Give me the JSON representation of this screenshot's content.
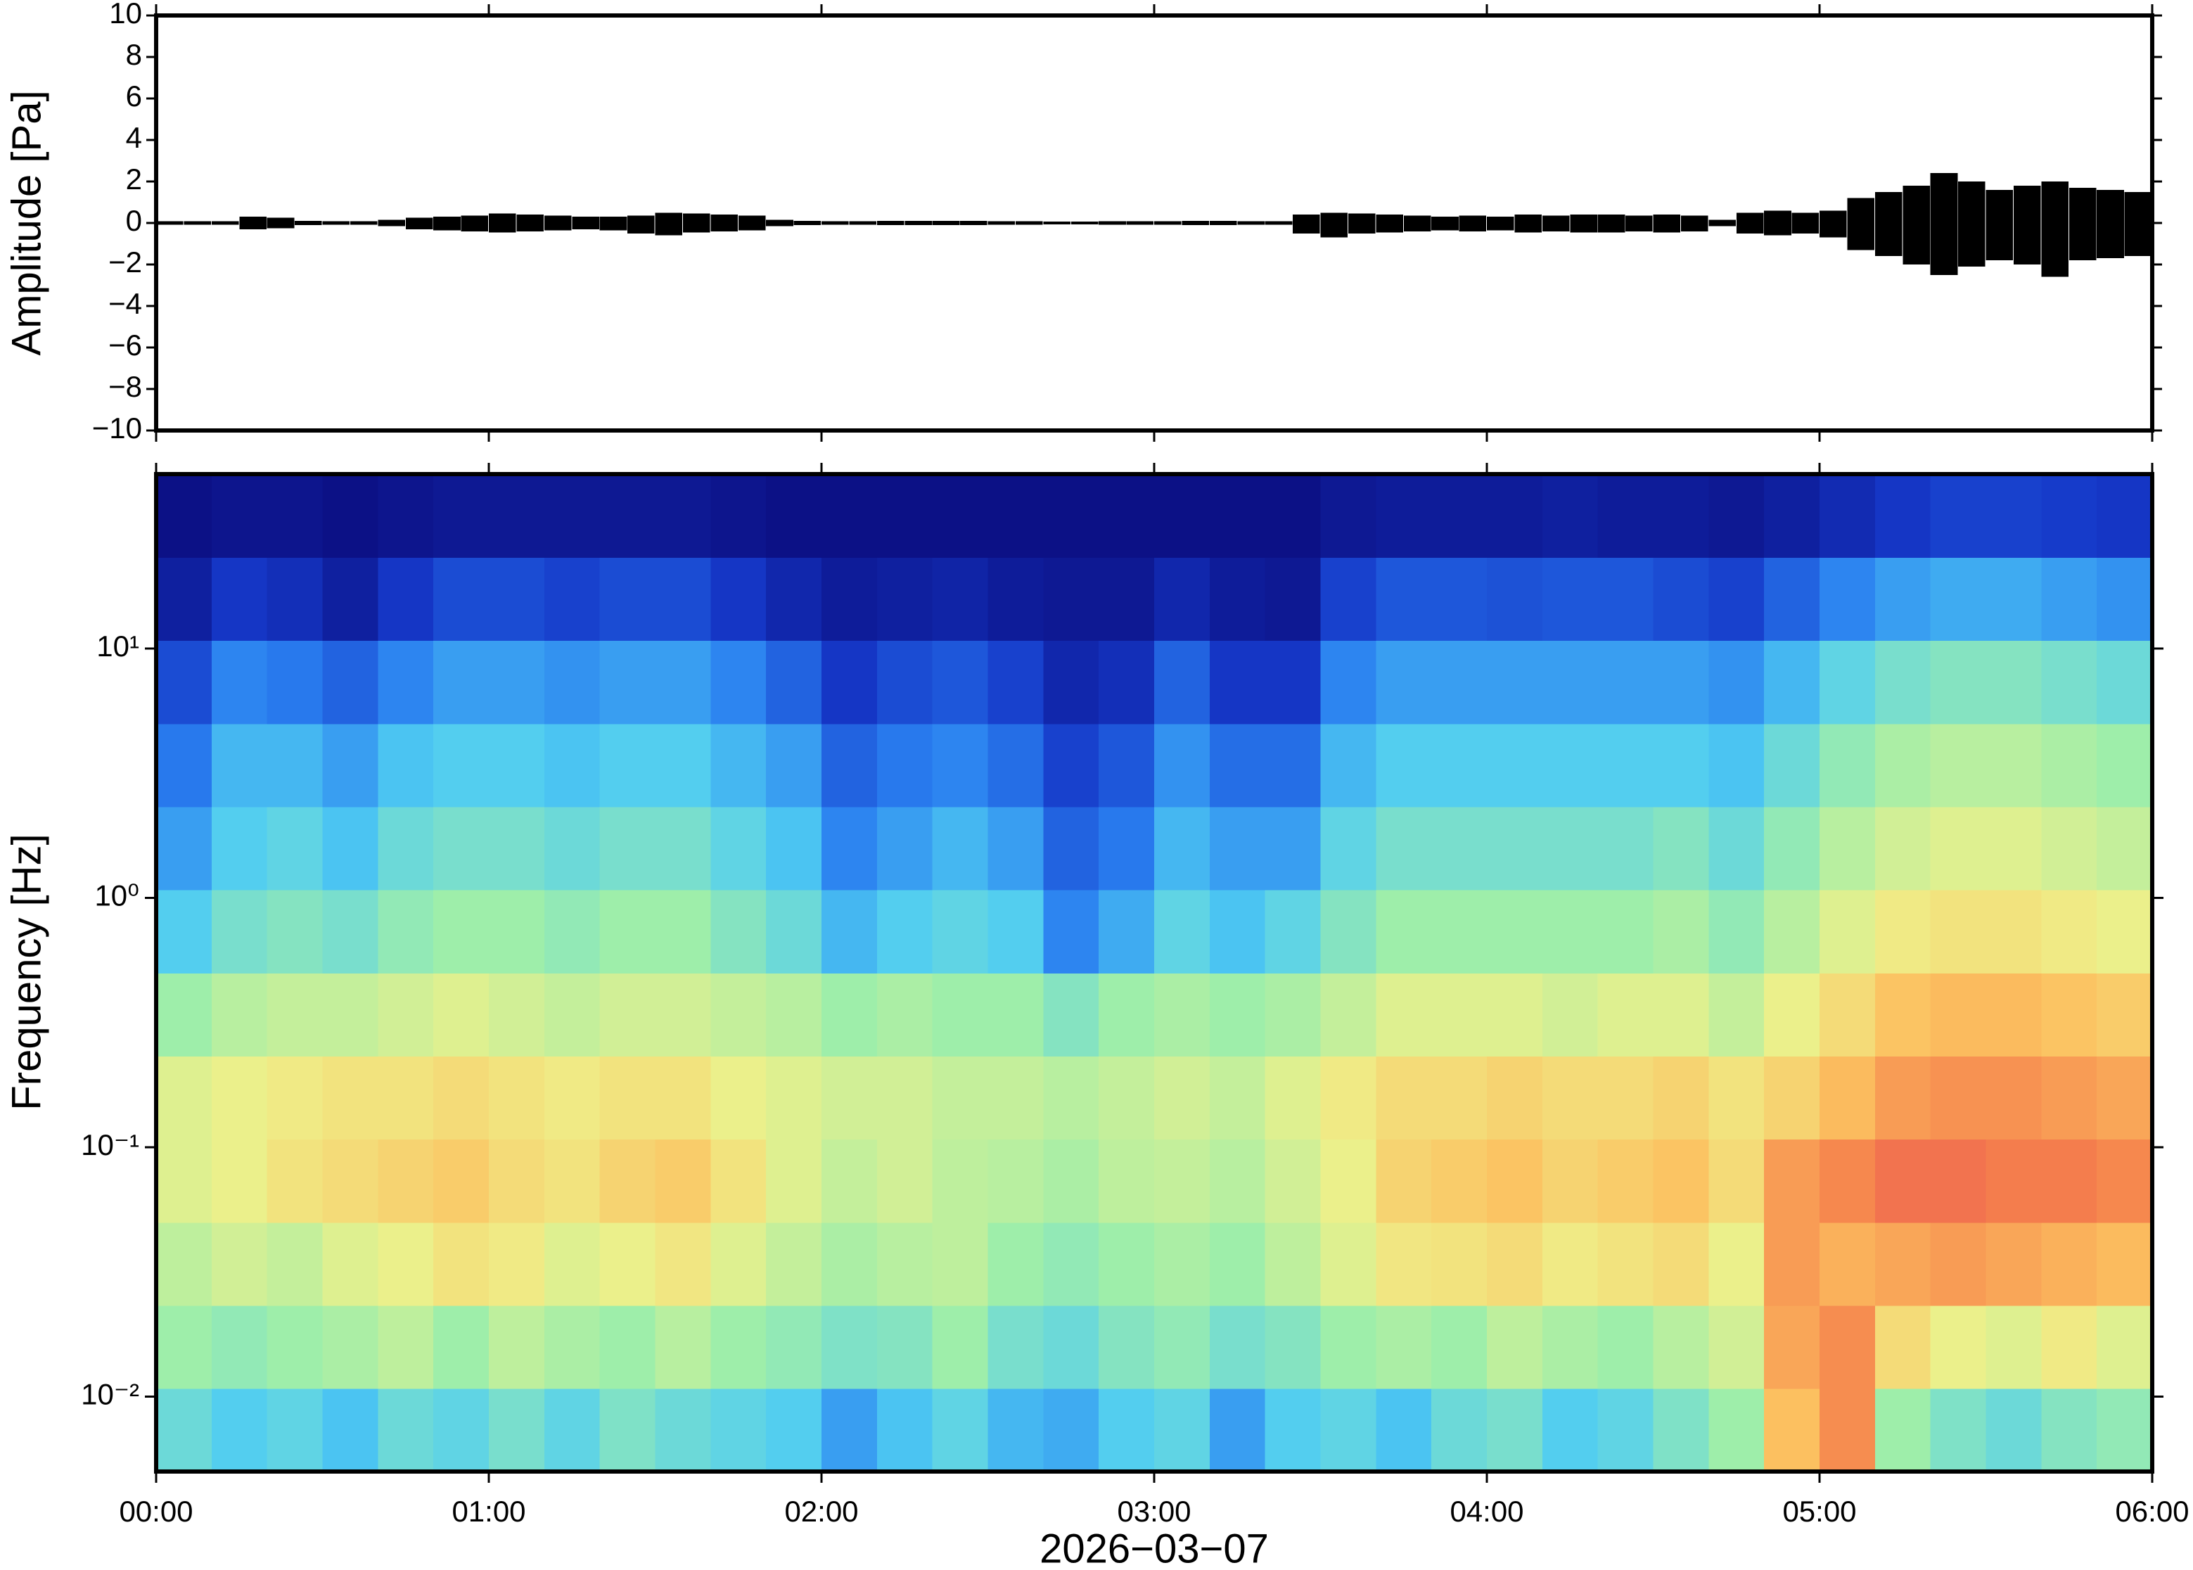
{
  "chart_data": [
    {
      "type": "waveform",
      "ylabel": "Amplitude [Pa]",
      "color": "#000000",
      "xlim": [
        0,
        360
      ],
      "xticks": [
        0,
        60,
        120,
        180,
        240,
        300,
        360
      ],
      "ylim": [
        -10,
        10
      ],
      "yticks": [
        {
          "value": -10,
          "label": "−10"
        },
        {
          "value": -8,
          "label": "−8"
        },
        {
          "value": -6,
          "label": "−6"
        },
        {
          "value": -4,
          "label": "−4"
        },
        {
          "value": -2,
          "label": "−2"
        },
        0,
        2,
        4,
        6,
        8,
        10
      ],
      "x": [
        0,
        5,
        10,
        15,
        20,
        25,
        30,
        35,
        40,
        45,
        50,
        55,
        60,
        65,
        70,
        75,
        80,
        85,
        90,
        95,
        100,
        105,
        110,
        115,
        120,
        125,
        130,
        135,
        140,
        145,
        150,
        155,
        160,
        165,
        170,
        175,
        180,
        185,
        190,
        195,
        200,
        205,
        210,
        215,
        220,
        225,
        230,
        235,
        240,
        245,
        250,
        255,
        260,
        265,
        270,
        275,
        280,
        285,
        290,
        295,
        300,
        305,
        310,
        315,
        320,
        325,
        330,
        335,
        340,
        345,
        350,
        355
      ],
      "max": [
        0.08,
        0.08,
        0.08,
        0.3,
        0.25,
        0.1,
        0.08,
        0.08,
        0.15,
        0.25,
        0.3,
        0.35,
        0.45,
        0.4,
        0.35,
        0.3,
        0.3,
        0.35,
        0.5,
        0.45,
        0.4,
        0.35,
        0.15,
        0.1,
        0.08,
        0.08,
        0.1,
        0.1,
        0.1,
        0.1,
        0.08,
        0.08,
        0.06,
        0.06,
        0.08,
        0.08,
        0.08,
        0.1,
        0.1,
        0.08,
        0.08,
        0.4,
        0.5,
        0.45,
        0.4,
        0.35,
        0.3,
        0.35,
        0.3,
        0.4,
        0.35,
        0.4,
        0.4,
        0.35,
        0.4,
        0.35,
        0.15,
        0.5,
        0.6,
        0.5,
        0.6,
        1.2,
        1.5,
        1.8,
        2.4,
        2.0,
        1.6,
        1.8,
        2.0,
        1.7,
        1.6,
        1.5
      ],
      "min": [
        -0.08,
        -0.08,
        -0.08,
        -0.3,
        -0.25,
        -0.1,
        -0.08,
        -0.08,
        -0.15,
        -0.3,
        -0.35,
        -0.4,
        -0.45,
        -0.4,
        -0.35,
        -0.3,
        -0.35,
        -0.5,
        -0.6,
        -0.45,
        -0.4,
        -0.35,
        -0.15,
        -0.1,
        -0.08,
        -0.08,
        -0.1,
        -0.1,
        -0.1,
        -0.1,
        -0.08,
        -0.08,
        -0.06,
        -0.06,
        -0.08,
        -0.08,
        -0.08,
        -0.1,
        -0.1,
        -0.08,
        -0.08,
        -0.5,
        -0.7,
        -0.5,
        -0.45,
        -0.4,
        -0.35,
        -0.4,
        -0.35,
        -0.45,
        -0.4,
        -0.45,
        -0.45,
        -0.4,
        -0.45,
        -0.4,
        -0.15,
        -0.5,
        -0.6,
        -0.5,
        -0.7,
        -1.3,
        -1.6,
        -2.0,
        -2.5,
        -2.1,
        -1.8,
        -2.0,
        -2.6,
        -1.8,
        -1.7,
        -1.6
      ]
    },
    {
      "type": "heatmap",
      "ylabel": "Frequency [Hz]",
      "xlabel": "2026−03−07",
      "ylog": true,
      "xlim": [
        0,
        360
      ],
      "xticks": [
        {
          "value": 0,
          "label": "00:00"
        },
        {
          "value": 60,
          "label": "01:00"
        },
        {
          "value": 120,
          "label": "02:00"
        },
        {
          "value": 180,
          "label": "03:00"
        },
        {
          "value": 240,
          "label": "04:00"
        },
        {
          "value": 300,
          "label": "05:00"
        },
        {
          "value": 360,
          "label": "06:00"
        }
      ],
      "ylim": [
        0.005,
        50
      ],
      "yticks": [
        {
          "value": 0.01,
          "label": "10⁻²"
        },
        {
          "value": 0.1,
          "label": "10⁻¹"
        },
        {
          "value": 1,
          "label": "10⁰"
        },
        {
          "value": 10,
          "label": "10¹"
        }
      ],
      "zlim": [
        0,
        1
      ],
      "colormap": [
        "#0a0a7a",
        "#1538c8",
        "#2a7ff0",
        "#50cdf2",
        "#9eeeaa",
        "#eef08a",
        "#fcc060",
        "#f5804c",
        "#e8405a"
      ],
      "x_edges": [
        0,
        10,
        20,
        30,
        40,
        50,
        60,
        70,
        80,
        90,
        100,
        110,
        120,
        130,
        140,
        150,
        160,
        170,
        180,
        190,
        200,
        210,
        220,
        230,
        240,
        250,
        260,
        270,
        280,
        290,
        300,
        310,
        320,
        330,
        340,
        350,
        360
      ],
      "y_edges": [
        0.005,
        0.0108,
        0.0232,
        0.05,
        0.108,
        0.232,
        0.5,
        1.08,
        2.32,
        5,
        10.8,
        23.2,
        50
      ],
      "z": [
        [
          0.42,
          0.38,
          0.4,
          0.36,
          0.42,
          0.4,
          0.44,
          0.4,
          0.45,
          0.42,
          0.4,
          0.38,
          0.3,
          0.36,
          0.4,
          0.34,
          0.32,
          0.38,
          0.4,
          0.3,
          0.38,
          0.4,
          0.36,
          0.42,
          0.44,
          0.38,
          0.4,
          0.45,
          0.5,
          0.75,
          0.85,
          0.5,
          0.45,
          0.42,
          0.46,
          0.48
        ],
        [
          0.5,
          0.48,
          0.5,
          0.52,
          0.55,
          0.5,
          0.55,
          0.52,
          0.5,
          0.54,
          0.5,
          0.48,
          0.45,
          0.46,
          0.5,
          0.44,
          0.42,
          0.46,
          0.48,
          0.44,
          0.46,
          0.5,
          0.52,
          0.5,
          0.55,
          0.52,
          0.5,
          0.54,
          0.58,
          0.8,
          0.85,
          0.68,
          0.62,
          0.6,
          0.64,
          0.6
        ],
        [
          0.55,
          0.58,
          0.56,
          0.6,
          0.62,
          0.66,
          0.64,
          0.6,
          0.62,
          0.65,
          0.6,
          0.56,
          0.52,
          0.54,
          0.55,
          0.5,
          0.48,
          0.5,
          0.52,
          0.5,
          0.55,
          0.6,
          0.65,
          0.66,
          0.68,
          0.64,
          0.66,
          0.68,
          0.62,
          0.82,
          0.78,
          0.8,
          0.82,
          0.8,
          0.78,
          0.76
        ],
        [
          0.6,
          0.62,
          0.66,
          0.68,
          0.7,
          0.72,
          0.68,
          0.66,
          0.7,
          0.72,
          0.66,
          0.6,
          0.56,
          0.58,
          0.55,
          0.54,
          0.52,
          0.55,
          0.56,
          0.54,
          0.58,
          0.62,
          0.7,
          0.72,
          0.74,
          0.7,
          0.72,
          0.74,
          0.68,
          0.82,
          0.86,
          0.9,
          0.9,
          0.88,
          0.88,
          0.86
        ],
        [
          0.6,
          0.62,
          0.64,
          0.66,
          0.66,
          0.68,
          0.66,
          0.64,
          0.66,
          0.66,
          0.62,
          0.6,
          0.58,
          0.58,
          0.56,
          0.56,
          0.54,
          0.56,
          0.58,
          0.56,
          0.6,
          0.64,
          0.68,
          0.68,
          0.7,
          0.68,
          0.68,
          0.7,
          0.66,
          0.7,
          0.76,
          0.82,
          0.84,
          0.84,
          0.82,
          0.8
        ],
        [
          0.5,
          0.54,
          0.56,
          0.56,
          0.58,
          0.6,
          0.58,
          0.56,
          0.58,
          0.58,
          0.56,
          0.54,
          0.5,
          0.52,
          0.5,
          0.5,
          0.46,
          0.5,
          0.52,
          0.5,
          0.52,
          0.56,
          0.6,
          0.6,
          0.6,
          0.58,
          0.6,
          0.6,
          0.56,
          0.62,
          0.68,
          0.74,
          0.76,
          0.76,
          0.74,
          0.72
        ],
        [
          0.38,
          0.44,
          0.46,
          0.44,
          0.48,
          0.5,
          0.5,
          0.48,
          0.5,
          0.5,
          0.46,
          0.42,
          0.34,
          0.38,
          0.4,
          0.38,
          0.26,
          0.32,
          0.4,
          0.36,
          0.4,
          0.46,
          0.5,
          0.5,
          0.5,
          0.5,
          0.5,
          0.52,
          0.48,
          0.54,
          0.6,
          0.64,
          0.66,
          0.66,
          0.64,
          0.62
        ],
        [
          0.3,
          0.38,
          0.4,
          0.36,
          0.42,
          0.44,
          0.44,
          0.42,
          0.44,
          0.44,
          0.4,
          0.36,
          0.26,
          0.3,
          0.34,
          0.3,
          0.2,
          0.24,
          0.34,
          0.3,
          0.3,
          0.4,
          0.44,
          0.44,
          0.44,
          0.44,
          0.44,
          0.46,
          0.42,
          0.48,
          0.54,
          0.58,
          0.6,
          0.6,
          0.58,
          0.56
        ],
        [
          0.24,
          0.34,
          0.34,
          0.3,
          0.36,
          0.38,
          0.38,
          0.36,
          0.38,
          0.38,
          0.34,
          0.3,
          0.2,
          0.24,
          0.26,
          0.22,
          0.14,
          0.18,
          0.28,
          0.22,
          0.22,
          0.34,
          0.38,
          0.38,
          0.38,
          0.38,
          0.38,
          0.38,
          0.36,
          0.42,
          0.48,
          0.52,
          0.54,
          0.54,
          0.52,
          0.5
        ],
        [
          0.16,
          0.26,
          0.24,
          0.2,
          0.26,
          0.3,
          0.3,
          0.28,
          0.3,
          0.3,
          0.26,
          0.2,
          0.12,
          0.16,
          0.18,
          0.14,
          0.08,
          0.1,
          0.2,
          0.12,
          0.12,
          0.26,
          0.3,
          0.3,
          0.3,
          0.3,
          0.3,
          0.3,
          0.28,
          0.34,
          0.4,
          0.44,
          0.46,
          0.46,
          0.44,
          0.42
        ],
        [
          0.06,
          0.12,
          0.1,
          0.06,
          0.12,
          0.16,
          0.16,
          0.14,
          0.16,
          0.16,
          0.12,
          0.08,
          0.05,
          0.06,
          0.07,
          0.05,
          0.04,
          0.04,
          0.08,
          0.05,
          0.04,
          0.14,
          0.18,
          0.18,
          0.17,
          0.18,
          0.18,
          0.16,
          0.14,
          0.2,
          0.26,
          0.3,
          0.32,
          0.32,
          0.3,
          0.28
        ],
        [
          0.02,
          0.03,
          0.03,
          0.02,
          0.03,
          0.04,
          0.04,
          0.04,
          0.04,
          0.04,
          0.03,
          0.02,
          0.02,
          0.02,
          0.02,
          0.02,
          0.02,
          0.02,
          0.02,
          0.02,
          0.02,
          0.04,
          0.05,
          0.05,
          0.05,
          0.06,
          0.05,
          0.05,
          0.04,
          0.06,
          0.09,
          0.12,
          0.14,
          0.14,
          0.13,
          0.12
        ]
      ]
    }
  ]
}
